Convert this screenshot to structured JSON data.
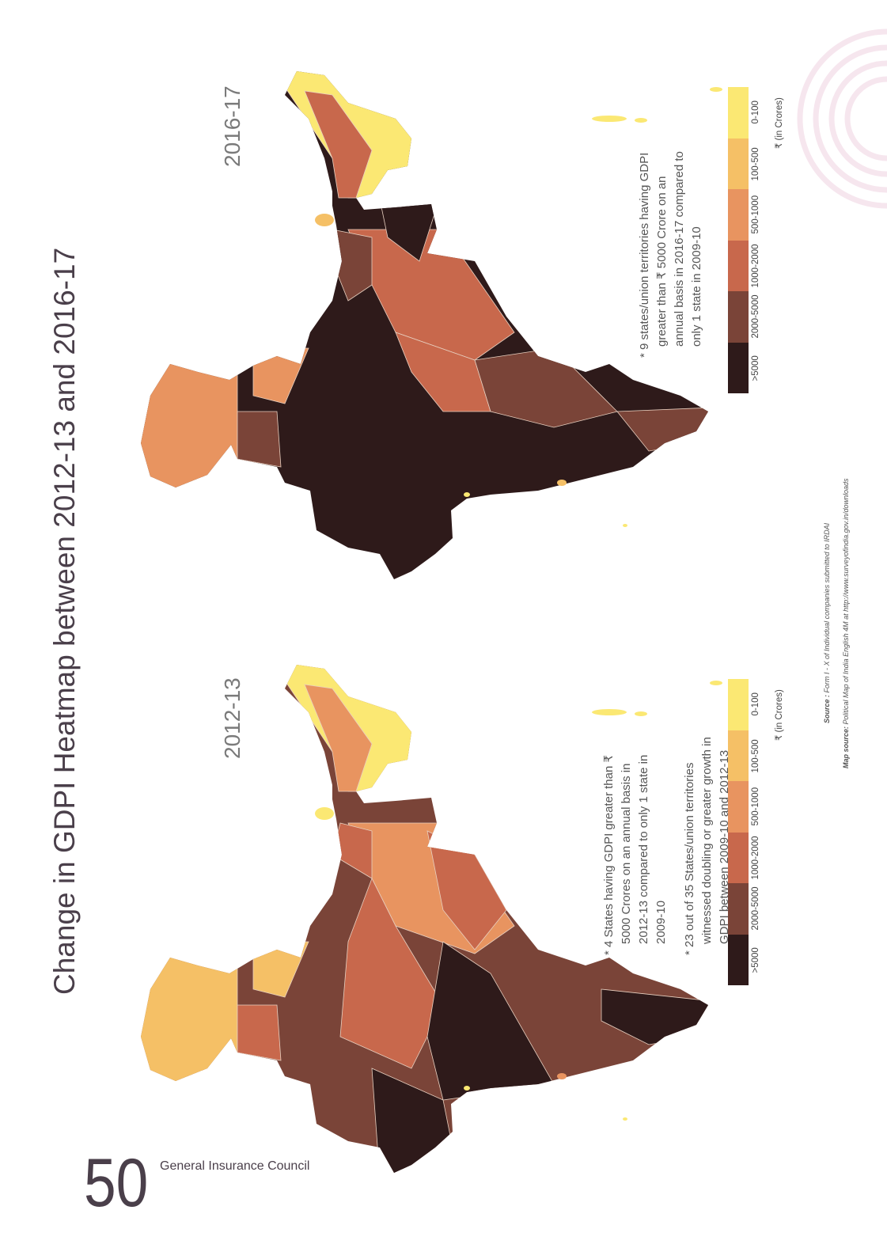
{
  "title": "Change in GDPI Heatmap between 2012-13 and 2016-17",
  "page_number": "50",
  "publisher": "General Insurance Council",
  "maps": [
    {
      "year": "2016-17",
      "notes": [
        "* 9 states/union territories having GDPI greater than ₹ 5000 Crore on an annual basis in 2016-17 compared to only 1 state in 2009-10"
      ],
      "legend": {
        "items": [
          {
            "label": ">5000",
            "color": "#2e1a1a"
          },
          {
            "label": "2000-5000",
            "color": "#7a4438"
          },
          {
            "label": "1000-2000",
            "color": "#c8684c"
          },
          {
            "label": "500-1000",
            "color": "#e89460"
          },
          {
            "label": "100-500",
            "color": "#f5c066"
          },
          {
            "label": "0-100",
            "color": "#fbe873"
          }
        ],
        "unit": "₹ (in Crores)"
      }
    },
    {
      "year": "2012-13",
      "notes": [
        "* 4 States having GDPI greater than ₹ 5000 Crores on an annual basis in 2012-13 compared to only 1 state in 2009-10",
        "* 23 out of 35 States/union territories witnessed doubling or greater growth in GDPI between 2009-10 and 2012-13"
      ],
      "legend": {
        "items": [
          {
            "label": ">5000",
            "color": "#2e1a1a"
          },
          {
            "label": "2000-5000",
            "color": "#7a4438"
          },
          {
            "label": "1000-2000",
            "color": "#c8684c"
          },
          {
            "label": "500-1000",
            "color": "#e89460"
          },
          {
            "label": "100-500",
            "color": "#f5c066"
          },
          {
            "label": "0-100",
            "color": "#fbe873"
          }
        ],
        "unit": "₹ (in Crores)"
      }
    }
  ],
  "sources": [
    {
      "label": "Source :",
      "text": "Form I - X of Individual companies submitted to IRDAI"
    },
    {
      "label": "Map source:",
      "text": "Political Map of India English 4M at http://www.surveyofindia.gov.in/downloads"
    }
  ]
}
